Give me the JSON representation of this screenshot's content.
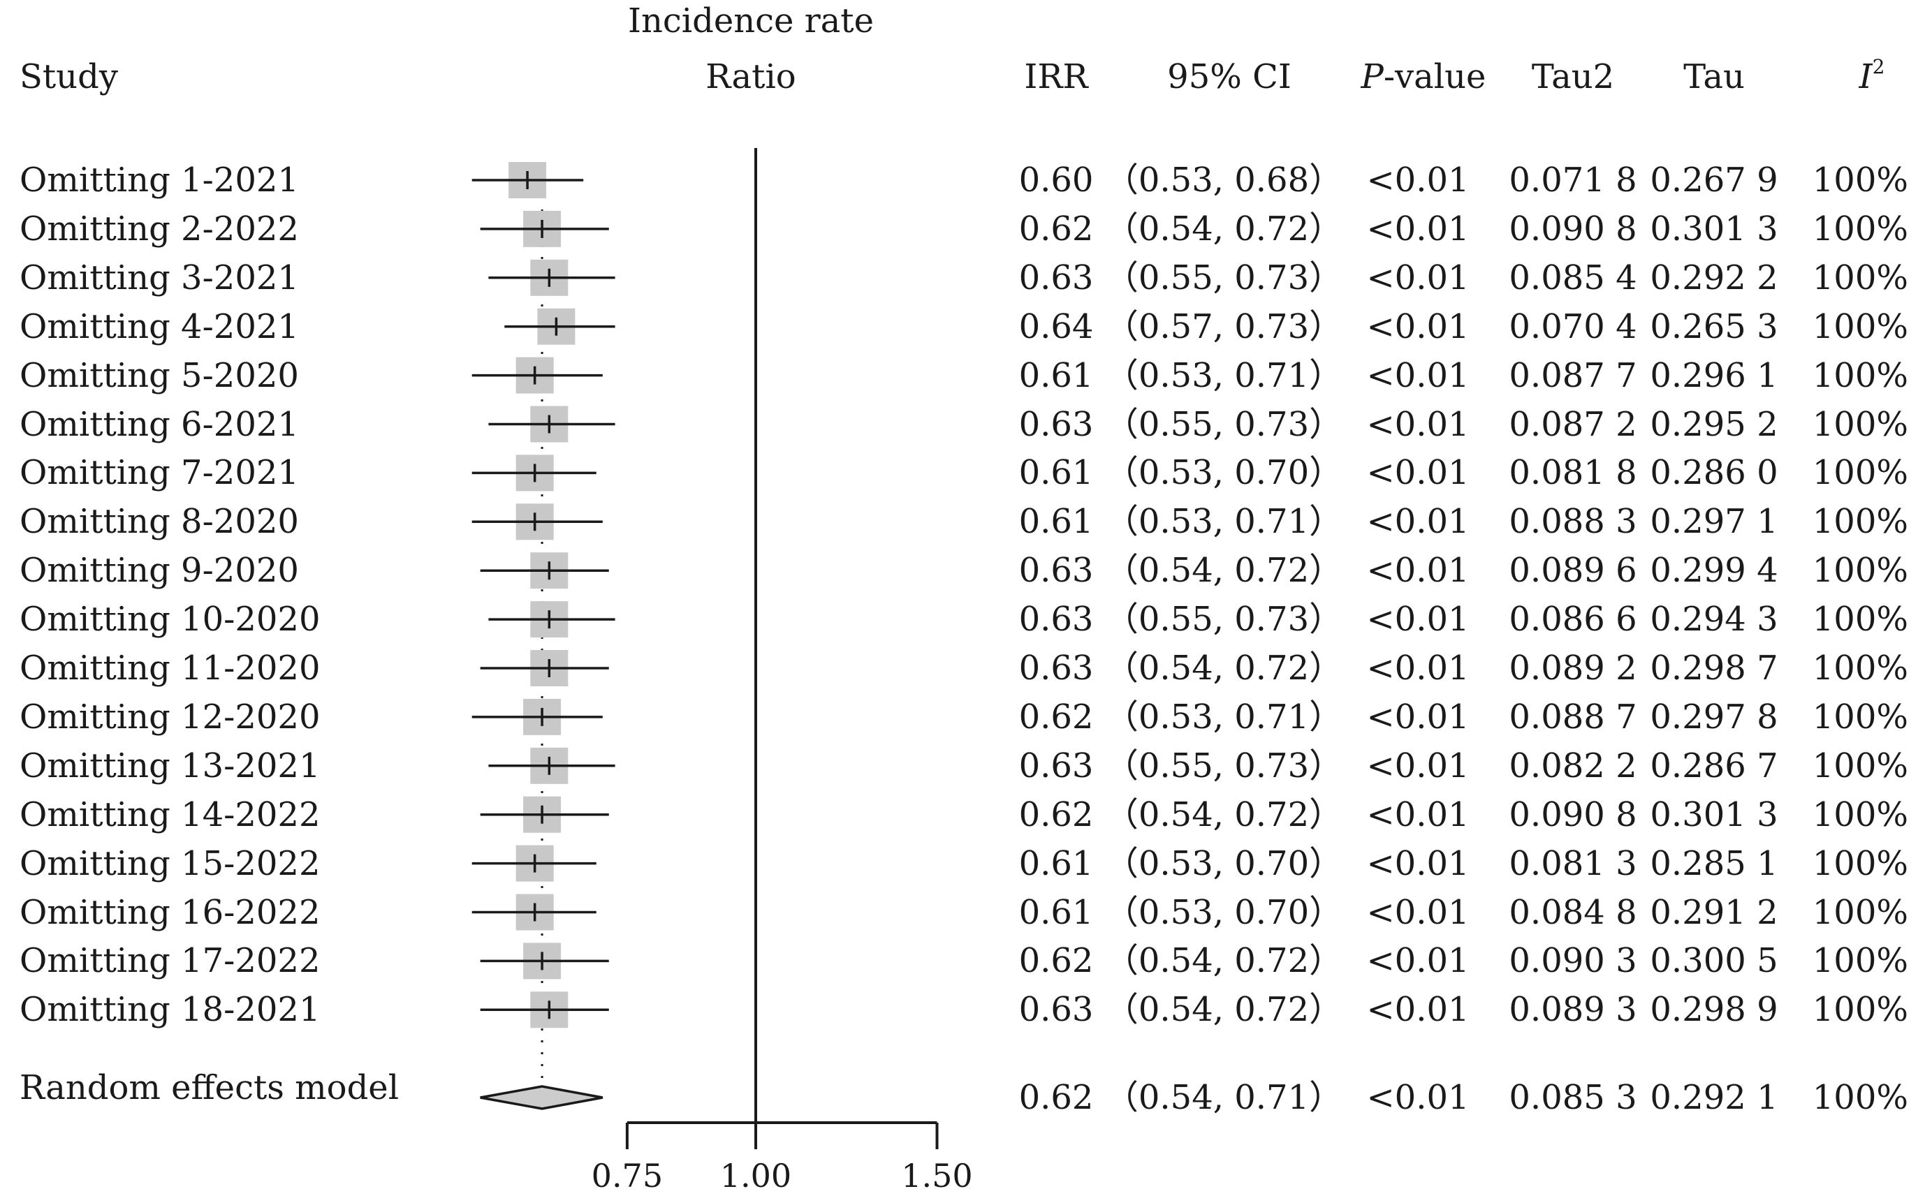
{
  "chart_data": {
    "type": "forest",
    "header": {
      "study": "Study",
      "plot_title_line1": "Incidence rate",
      "plot_title_line2": "Ratio",
      "irr": "IRR",
      "ci": "95% CI",
      "p_italic": "P",
      "p_rest": "-value",
      "tau2": "Tau2",
      "tau": "Tau",
      "i2_base": "I",
      "i2_sup": "2"
    },
    "x_axis": {
      "null_value": 1.0,
      "ticks": [
        0.75,
        1.0,
        1.5
      ],
      "tick_labels": [
        "0.75",
        "1.00",
        "1.50"
      ]
    },
    "studies": [
      {
        "label": "Omitting 1-2021",
        "irr": 0.6,
        "lo": 0.53,
        "hi": 0.68,
        "irr_text": "0.60",
        "ci_text": "（0.53, 0.68）",
        "p_text": "<0.01",
        "tau2_text": "0.071 8",
        "tau_text": "0.267 9",
        "i2_text": "100%"
      },
      {
        "label": "Omitting 2-2022",
        "irr": 0.62,
        "lo": 0.54,
        "hi": 0.72,
        "irr_text": "0.62",
        "ci_text": "（0.54, 0.72）",
        "p_text": "<0.01",
        "tau2_text": "0.090 8",
        "tau_text": "0.301 3",
        "i2_text": "100%"
      },
      {
        "label": "Omitting 3-2021",
        "irr": 0.63,
        "lo": 0.55,
        "hi": 0.73,
        "irr_text": "0.63",
        "ci_text": "（0.55, 0.73）",
        "p_text": "<0.01",
        "tau2_text": "0.085 4",
        "tau_text": "0.292 2",
        "i2_text": "100%"
      },
      {
        "label": "Omitting 4-2021",
        "irr": 0.64,
        "lo": 0.57,
        "hi": 0.73,
        "irr_text": "0.64",
        "ci_text": "（0.57, 0.73）",
        "p_text": "<0.01",
        "tau2_text": "0.070 4",
        "tau_text": "0.265 3",
        "i2_text": "100%"
      },
      {
        "label": "Omitting 5-2020",
        "irr": 0.61,
        "lo": 0.53,
        "hi": 0.71,
        "irr_text": "0.61",
        "ci_text": "（0.53, 0.71）",
        "p_text": "<0.01",
        "tau2_text": "0.087 7",
        "tau_text": "0.296 1",
        "i2_text": "100%"
      },
      {
        "label": "Omitting 6-2021",
        "irr": 0.63,
        "lo": 0.55,
        "hi": 0.73,
        "irr_text": "0.63",
        "ci_text": "（0.55, 0.73）",
        "p_text": "<0.01",
        "tau2_text": "0.087 2",
        "tau_text": "0.295 2",
        "i2_text": "100%"
      },
      {
        "label": "Omitting 7-2021",
        "irr": 0.61,
        "lo": 0.53,
        "hi": 0.7,
        "irr_text": "0.61",
        "ci_text": "（0.53, 0.70）",
        "p_text": "<0.01",
        "tau2_text": "0.081 8",
        "tau_text": "0.286 0",
        "i2_text": "100%"
      },
      {
        "label": "Omitting 8-2020",
        "irr": 0.61,
        "lo": 0.53,
        "hi": 0.71,
        "irr_text": "0.61",
        "ci_text": "（0.53, 0.71）",
        "p_text": "<0.01",
        "tau2_text": "0.088 3",
        "tau_text": "0.297 1",
        "i2_text": "100%"
      },
      {
        "label": "Omitting 9-2020",
        "irr": 0.63,
        "lo": 0.54,
        "hi": 0.72,
        "irr_text": "0.63",
        "ci_text": "（0.54, 0.72）",
        "p_text": "<0.01",
        "tau2_text": "0.089 6",
        "tau_text": "0.299 4",
        "i2_text": "100%"
      },
      {
        "label": "Omitting 10-2020",
        "irr": 0.63,
        "lo": 0.55,
        "hi": 0.73,
        "irr_text": "0.63",
        "ci_text": "（0.55, 0.73）",
        "p_text": "<0.01",
        "tau2_text": "0.086 6",
        "tau_text": "0.294 3",
        "i2_text": "100%"
      },
      {
        "label": "Omitting 11-2020",
        "irr": 0.63,
        "lo": 0.54,
        "hi": 0.72,
        "irr_text": "0.63",
        "ci_text": "（0.54, 0.72）",
        "p_text": "<0.01",
        "tau2_text": "0.089 2",
        "tau_text": "0.298 7",
        "i2_text": "100%"
      },
      {
        "label": "Omitting 12-2020",
        "irr": 0.62,
        "lo": 0.53,
        "hi": 0.71,
        "irr_text": "0.62",
        "ci_text": "（0.53, 0.71）",
        "p_text": "<0.01",
        "tau2_text": "0.088 7",
        "tau_text": "0.297 8",
        "i2_text": "100%"
      },
      {
        "label": "Omitting 13-2021",
        "irr": 0.63,
        "lo": 0.55,
        "hi": 0.73,
        "irr_text": "0.63",
        "ci_text": "（0.55, 0.73）",
        "p_text": "<0.01",
        "tau2_text": "0.082 2",
        "tau_text": "0.286 7",
        "i2_text": "100%"
      },
      {
        "label": "Omitting 14-2022",
        "irr": 0.62,
        "lo": 0.54,
        "hi": 0.72,
        "irr_text": "0.62",
        "ci_text": "（0.54, 0.72）",
        "p_text": "<0.01",
        "tau2_text": "0.090 8",
        "tau_text": "0.301 3",
        "i2_text": "100%"
      },
      {
        "label": "Omitting 15-2022",
        "irr": 0.61,
        "lo": 0.53,
        "hi": 0.7,
        "irr_text": "0.61",
        "ci_text": "（0.53, 0.70）",
        "p_text": "<0.01",
        "tau2_text": "0.081 3",
        "tau_text": "0.285 1",
        "i2_text": "100%"
      },
      {
        "label": "Omitting 16-2022",
        "irr": 0.61,
        "lo": 0.53,
        "hi": 0.7,
        "irr_text": "0.61",
        "ci_text": "（0.53, 0.70）",
        "p_text": "<0.01",
        "tau2_text": "0.084 8",
        "tau_text": "0.291 2",
        "i2_text": "100%"
      },
      {
        "label": "Omitting 17-2022",
        "irr": 0.62,
        "lo": 0.54,
        "hi": 0.72,
        "irr_text": "0.62",
        "ci_text": "（0.54, 0.72）",
        "p_text": "<0.01",
        "tau2_text": "0.090 3",
        "tau_text": "0.300 5",
        "i2_text": "100%"
      },
      {
        "label": "Omitting 18-2021",
        "irr": 0.63,
        "lo": 0.54,
        "hi": 0.72,
        "irr_text": "0.63",
        "ci_text": "（0.54, 0.72）",
        "p_text": "<0.01",
        "tau2_text": "0.089 3",
        "tau_text": "0.298 9",
        "i2_text": "100%"
      }
    ],
    "summary": {
      "label": "Random effects model",
      "irr": 0.62,
      "lo": 0.54,
      "hi": 0.71,
      "irr_text": "0.62",
      "ci_text": "（0.54, 0.71）",
      "p_text": "<0.01",
      "tau2_text": "0.085 3",
      "tau_text": "0.292 1",
      "i2_text": "100%"
    },
    "colors": {
      "box_fill": "#c8c8c8",
      "line": "#1a1a1a",
      "diamond_fill": "#cccccc"
    }
  }
}
